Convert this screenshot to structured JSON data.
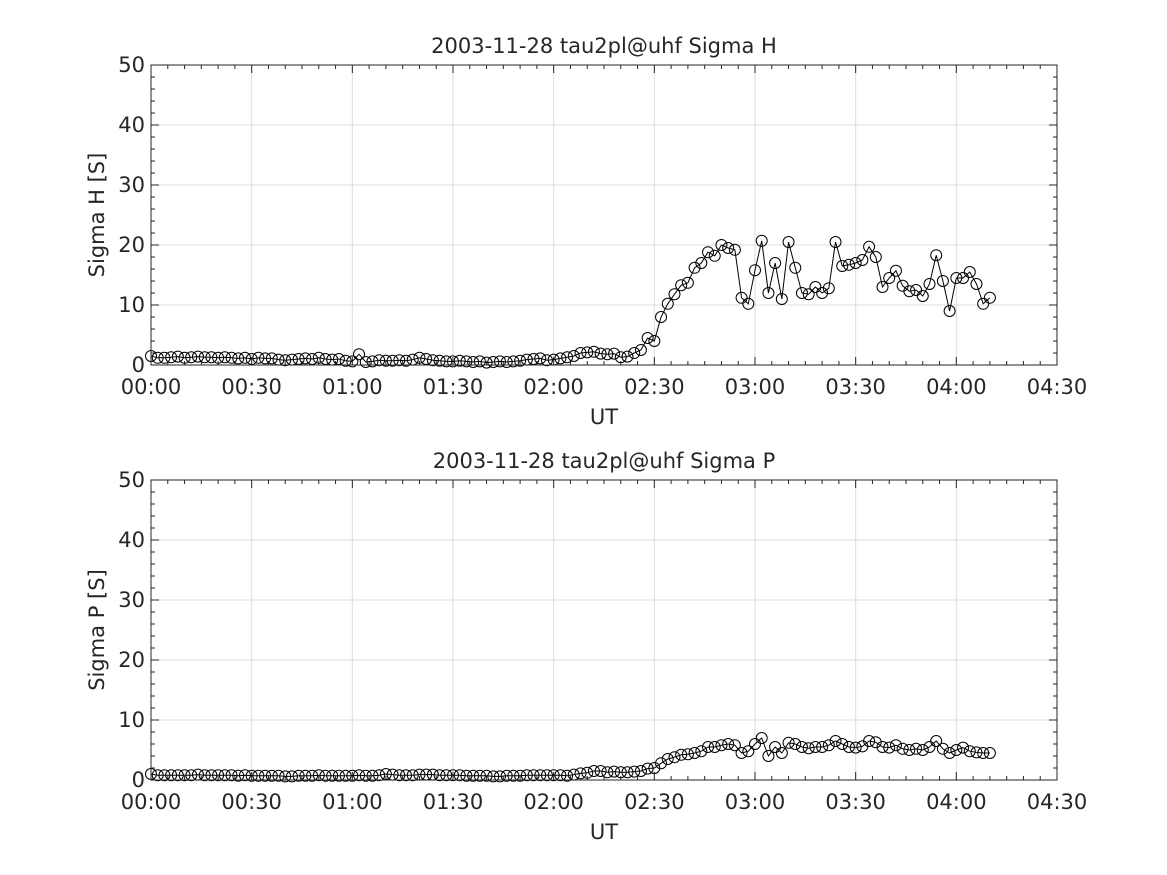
{
  "chart_data": [
    {
      "type": "line",
      "title": "2003-11-28  tau2pl@uhf Sigma H",
      "xlabel": "UT",
      "ylabel": "Sigma H [S]",
      "ylim": [
        0,
        50
      ],
      "yticks": [
        0,
        10,
        20,
        30,
        40,
        50
      ],
      "xlim_minutes": [
        0,
        270
      ],
      "xticks": [
        "00:00",
        "00:30",
        "01:00",
        "01:30",
        "02:00",
        "02:30",
        "03:00",
        "03:30",
        "04:00",
        "04:30"
      ],
      "grid": true,
      "legend": "none",
      "series": [
        {
          "marker": "open-circle",
          "color": "#000000",
          "x_start": "00:00",
          "x_step_minutes": 2,
          "values": [
            1.5,
            1.2,
            1.2,
            1.3,
            1.4,
            1.2,
            1.3,
            1.4,
            1.3,
            1.3,
            1.2,
            1.3,
            1.2,
            1.1,
            1.2,
            1.0,
            1.2,
            1.1,
            1.1,
            0.9,
            0.8,
            0.9,
            1.0,
            1.1,
            1.0,
            1.2,
            1.0,
            0.9,
            1.0,
            0.7,
            0.6,
            1.8,
            0.5,
            0.6,
            0.8,
            0.7,
            0.7,
            0.8,
            0.7,
            0.9,
            1.2,
            1.0,
            0.8,
            0.7,
            0.6,
            0.6,
            0.7,
            0.6,
            0.5,
            0.6,
            0.4,
            0.5,
            0.6,
            0.5,
            0.6,
            0.7,
            0.9,
            1.0,
            1.1,
            0.8,
            0.9,
            1.1,
            1.3,
            1.5,
            2.0,
            2.1,
            2.2,
            1.9,
            1.8,
            1.9,
            1.3,
            1.4,
            2.0,
            2.5,
            4.5,
            4.0,
            8.0,
            10.2,
            11.8,
            13.3,
            13.7,
            16.2,
            17.0,
            18.8,
            18.2,
            20.0,
            19.5,
            19.2,
            11.2,
            10.2,
            15.8,
            20.7,
            12.0,
            17.0,
            11.0,
            20.5,
            16.2,
            12.0,
            11.8,
            13.0,
            12.0,
            12.8,
            20.5,
            16.5,
            16.7,
            17.0,
            17.5,
            19.7,
            18.0,
            13.0,
            14.5,
            15.7,
            13.2,
            12.3,
            12.5,
            11.5,
            13.5,
            18.3,
            14.0,
            9.0,
            14.5,
            14.5,
            15.5,
            13.5,
            10.2,
            11.2
          ]
        }
      ]
    },
    {
      "type": "line",
      "title": "2003-11-28  tau2pl@uhf Sigma P",
      "xlabel": "UT",
      "ylabel": "Sigma P [S]",
      "ylim": [
        0,
        50
      ],
      "yticks": [
        0,
        10,
        20,
        30,
        40,
        50
      ],
      "xlim_minutes": [
        0,
        270
      ],
      "xticks": [
        "00:00",
        "00:30",
        "01:00",
        "01:30",
        "02:00",
        "02:30",
        "03:00",
        "03:30",
        "04:00",
        "04:30"
      ],
      "grid": true,
      "legend": "none",
      "series": [
        {
          "marker": "open-circle",
          "color": "#000000",
          "x_start": "00:00",
          "x_step_minutes": 2,
          "values": [
            1.0,
            0.8,
            0.8,
            0.8,
            0.8,
            0.8,
            0.8,
            0.9,
            0.8,
            0.8,
            0.8,
            0.8,
            0.8,
            0.7,
            0.8,
            0.7,
            0.7,
            0.7,
            0.7,
            0.7,
            0.6,
            0.6,
            0.7,
            0.7,
            0.7,
            0.8,
            0.7,
            0.7,
            0.7,
            0.7,
            0.7,
            0.8,
            0.7,
            0.7,
            0.8,
            1.0,
            0.9,
            0.8,
            0.8,
            0.8,
            0.9,
            0.9,
            0.9,
            0.8,
            0.8,
            0.8,
            0.8,
            0.7,
            0.7,
            0.7,
            0.7,
            0.6,
            0.6,
            0.7,
            0.7,
            0.7,
            0.8,
            0.8,
            0.8,
            0.8,
            0.8,
            0.8,
            0.7,
            0.9,
            1.1,
            1.2,
            1.5,
            1.5,
            1.3,
            1.4,
            1.3,
            1.3,
            1.4,
            1.5,
            1.9,
            2.0,
            2.8,
            3.5,
            3.8,
            4.2,
            4.3,
            4.5,
            4.8,
            5.5,
            5.5,
            5.8,
            6.0,
            5.8,
            4.5,
            4.8,
            6.0,
            7.0,
            4.0,
            5.5,
            4.5,
            6.2,
            6.0,
            5.5,
            5.3,
            5.5,
            5.5,
            5.8,
            6.5,
            6.0,
            5.5,
            5.4,
            5.6,
            6.5,
            6.3,
            5.5,
            5.4,
            5.8,
            5.2,
            5.0,
            5.2,
            5.0,
            5.5,
            6.5,
            5.2,
            4.5,
            5.0,
            5.4,
            4.8,
            4.6,
            4.5,
            4.5
          ]
        }
      ]
    }
  ]
}
